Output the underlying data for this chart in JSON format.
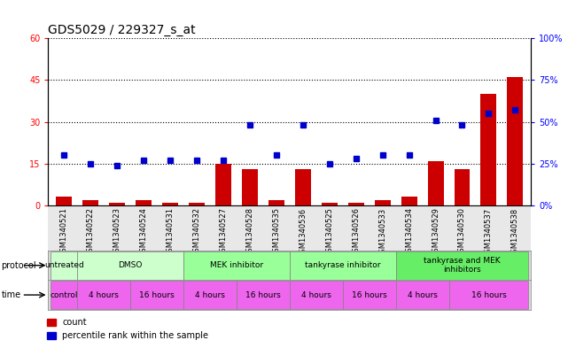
{
  "title": "GDS5029 / 229327_s_at",
  "samples": [
    "GSM1340521",
    "GSM1340522",
    "GSM1340523",
    "GSM1340524",
    "GSM1340531",
    "GSM1340532",
    "GSM1340527",
    "GSM1340528",
    "GSM1340535",
    "GSM1340536",
    "GSM1340525",
    "GSM1340526",
    "GSM1340533",
    "GSM1340534",
    "GSM1340529",
    "GSM1340530",
    "GSM1340537",
    "GSM1340538"
  ],
  "counts": [
    3,
    2,
    1,
    2,
    1,
    1,
    15,
    13,
    2,
    13,
    1,
    1,
    2,
    3,
    16,
    13,
    40,
    46
  ],
  "percentiles": [
    30,
    25,
    24,
    27,
    27,
    27,
    27,
    48,
    30,
    48,
    25,
    28,
    30,
    30,
    51,
    48,
    55,
    57
  ],
  "ylim_left": [
    0,
    60
  ],
  "ylim_right": [
    0,
    100
  ],
  "yticks_left": [
    0,
    15,
    30,
    45,
    60
  ],
  "yticks_right": [
    0,
    25,
    50,
    75,
    100
  ],
  "bar_color": "#cc0000",
  "dot_color": "#0000cc",
  "proto_groups": [
    {
      "label": "untreated",
      "samples": [
        0
      ],
      "color": "#ccffcc"
    },
    {
      "label": "DMSO",
      "samples": [
        1,
        2,
        3,
        4
      ],
      "color": "#ccffcc"
    },
    {
      "label": "MEK inhibitor",
      "samples": [
        5,
        6,
        7,
        8
      ],
      "color": "#99ff99"
    },
    {
      "label": "tankyrase inhibitor",
      "samples": [
        9,
        10,
        11,
        12
      ],
      "color": "#99ff99"
    },
    {
      "label": "tankyrase and MEK\ninhibitors",
      "samples": [
        13,
        14,
        15,
        16,
        17
      ],
      "color": "#66ee66"
    }
  ],
  "time_groups": [
    {
      "label": "control",
      "samples": [
        0
      ],
      "color": "#ee66ee"
    },
    {
      "label": "4 hours",
      "samples": [
        1,
        2
      ],
      "color": "#ee66ee"
    },
    {
      "label": "16 hours",
      "samples": [
        3,
        4
      ],
      "color": "#ee66ee"
    },
    {
      "label": "4 hours",
      "samples": [
        5,
        6
      ],
      "color": "#ee66ee"
    },
    {
      "label": "16 hours",
      "samples": [
        7,
        8
      ],
      "color": "#ee66ee"
    },
    {
      "label": "4 hours",
      "samples": [
        9,
        10
      ],
      "color": "#ee66ee"
    },
    {
      "label": "16 hours",
      "samples": [
        11,
        12
      ],
      "color": "#ee66ee"
    },
    {
      "label": "4 hours",
      "samples": [
        13,
        14
      ],
      "color": "#ee66ee"
    },
    {
      "label": "16 hours",
      "samples": [
        15,
        16,
        17
      ],
      "color": "#ee66ee"
    }
  ]
}
